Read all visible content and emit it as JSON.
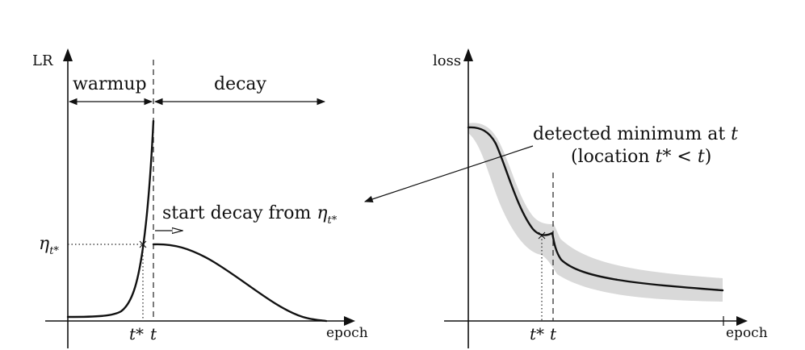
{
  "left_panel": {
    "y_axis_label": "LR",
    "x_axis_label": "epoch",
    "warmup_label": "warmup",
    "decay_label": "decay",
    "eta_label": "η",
    "eta_sub": "t*",
    "start_decay_text": "start decay from ",
    "start_decay_eta": "η",
    "start_decay_eta_sub": "t*",
    "tick_tstar": "t*",
    "tick_t": "t"
  },
  "right_panel": {
    "y_axis_label": "loss",
    "x_axis_label": "epoch",
    "annotation_line1": "detected minimum at ",
    "annotation_line1_var": "t",
    "annotation_line2_open": "(location ",
    "annotation_line2_expr": "t* < t",
    "annotation_line2_close": ")",
    "tick_tstar": "t*",
    "tick_t": "t"
  },
  "colors": {
    "ink": "#111111",
    "band": "#d9d9d9"
  }
}
